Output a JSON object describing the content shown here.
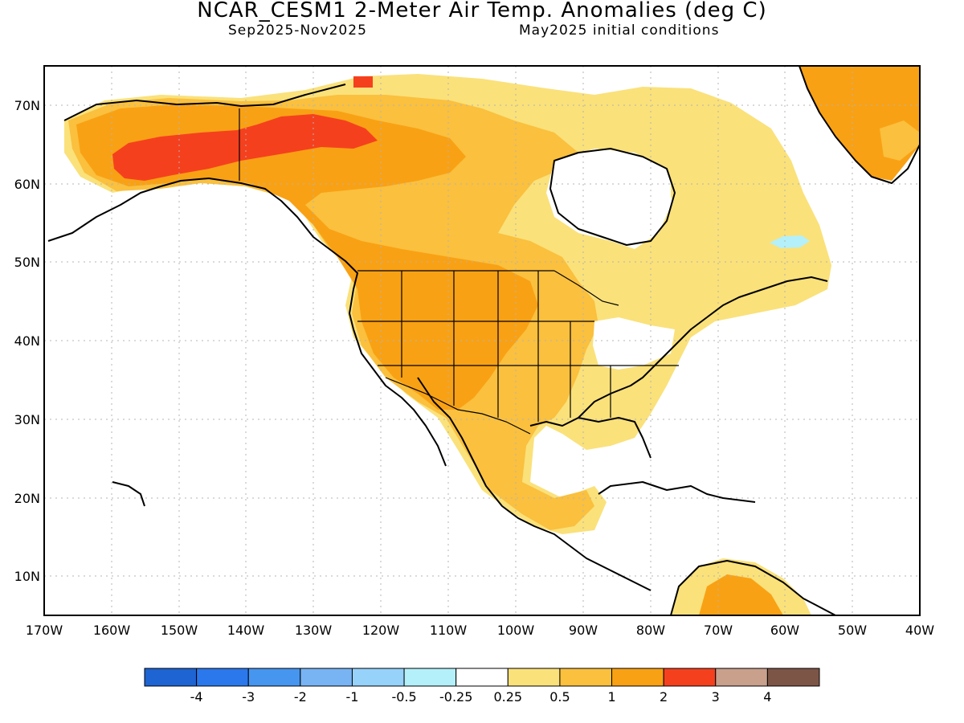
{
  "title": "NCAR_CESM1 2-Meter Air Temp. Anomalies (deg C)",
  "subtitle_left": "Sep2025-Nov2025",
  "subtitle_right": "May2025 initial conditions",
  "lat_labels": [
    "70N",
    "60N",
    "50N",
    "40N",
    "30N",
    "20N",
    "10N"
  ],
  "lon_labels": [
    "170W",
    "160W",
    "150W",
    "140W",
    "130W",
    "120W",
    "110W",
    "100W",
    "90W",
    "80W",
    "70W",
    "60W",
    "50W",
    "40W"
  ],
  "colorbar": {
    "ticks": [
      "-4",
      "-3",
      "-2",
      "-1",
      "-0.5",
      "-0.25",
      "0.25",
      "0.5",
      "1",
      "2",
      "3",
      "4"
    ],
    "colors": [
      "#1e64d2",
      "#2a78ec",
      "#4696f0",
      "#78b4f4",
      "#96d2fa",
      "#b4f0fa",
      "#ffffff",
      "#fae17a",
      "#fac03e",
      "#f9a114",
      "#f5401e",
      "#c8a08c",
      "#7d5546"
    ]
  },
  "map_colors": {
    "land_outline": "#000000",
    "ocean": "#ffffff",
    "grid": "#b4b4b4"
  },
  "anomaly_fields": [
    {
      "name": "alaska-3to4",
      "level": "3"
    },
    {
      "name": "canada-2to3",
      "level": "2"
    },
    {
      "name": "western-us-2to3",
      "level": "2"
    },
    {
      "name": "eastern-us-0.5to1",
      "level": "0.5"
    },
    {
      "name": "labrador-neg",
      "level": "-0.5"
    },
    {
      "name": "greenland-1to2",
      "level": "1"
    }
  ]
}
